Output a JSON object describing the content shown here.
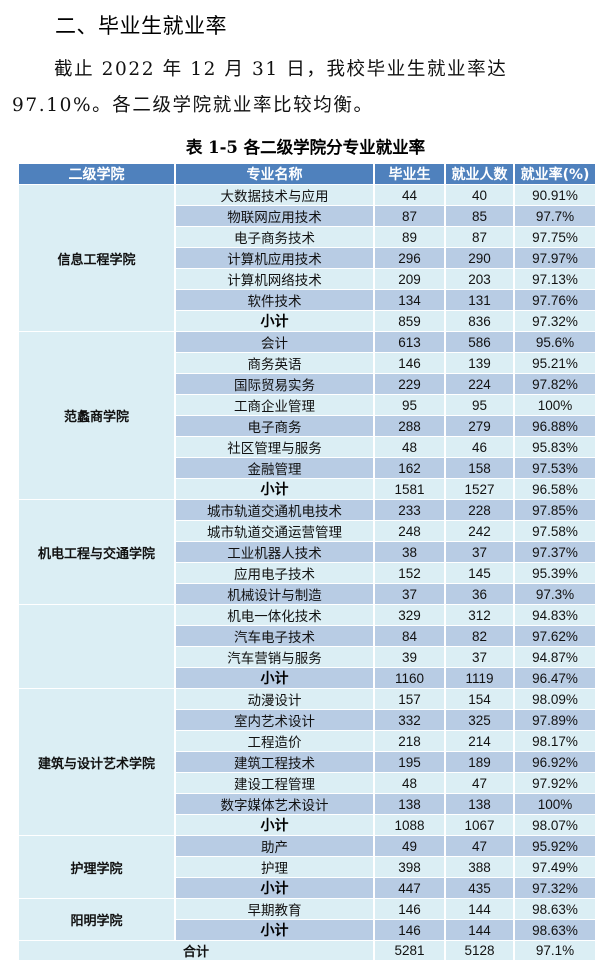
{
  "section": {
    "heading": "二、毕业生就业率",
    "paragraph": "截止 2022 年 12 月 31 日，我校毕业生就业率达 97.10%。各二级学院就业率比较均衡。"
  },
  "table": {
    "caption": "表 1-5 各二级学院分专业就业率",
    "headers": [
      "二级学院",
      "专业名称",
      "毕业生",
      "就业人数",
      "就业率(%)"
    ],
    "colors": {
      "header_bg": "#4f81bd",
      "header_text": "#ffffff",
      "row_light": "#dbeef4",
      "row_dark": "#b8cce4"
    },
    "groups": [
      {
        "college": "信息工程学院",
        "rows": [
          {
            "major": "大数据技术与应用",
            "graduates": "44",
            "employed": "40",
            "rate": "90.91%"
          },
          {
            "major": "物联网应用技术",
            "graduates": "87",
            "employed": "85",
            "rate": "97.7%"
          },
          {
            "major": "电子商务技术",
            "graduates": "89",
            "employed": "87",
            "rate": "97.75%"
          },
          {
            "major": "计算机应用技术",
            "graduates": "296",
            "employed": "290",
            "rate": "97.97%"
          },
          {
            "major": "计算机网络技术",
            "graduates": "209",
            "employed": "203",
            "rate": "97.13%"
          },
          {
            "major": "软件技术",
            "graduates": "134",
            "employed": "131",
            "rate": "97.76%"
          },
          {
            "major": "小计",
            "graduates": "859",
            "employed": "836",
            "rate": "97.32%",
            "subtotal": true
          }
        ]
      },
      {
        "college": "范蠡商学院",
        "rows": [
          {
            "major": "会计",
            "graduates": "613",
            "employed": "586",
            "rate": "95.6%"
          },
          {
            "major": "商务英语",
            "graduates": "146",
            "employed": "139",
            "rate": "95.21%"
          },
          {
            "major": "国际贸易实务",
            "graduates": "229",
            "employed": "224",
            "rate": "97.82%"
          },
          {
            "major": "工商企业管理",
            "graduates": "95",
            "employed": "95",
            "rate": "100%"
          },
          {
            "major": "电子商务",
            "graduates": "288",
            "employed": "279",
            "rate": "96.88%"
          },
          {
            "major": "社区管理与服务",
            "graduates": "48",
            "employed": "46",
            "rate": "95.83%"
          },
          {
            "major": "金融管理",
            "graduates": "162",
            "employed": "158",
            "rate": "97.53%"
          },
          {
            "major": "小计",
            "graduates": "1581",
            "employed": "1527",
            "rate": "96.58%",
            "subtotal": true
          }
        ]
      },
      {
        "college": "机电工程与交通学院",
        "rows": [
          {
            "major": "城市轨道交通机电技术",
            "graduates": "233",
            "employed": "228",
            "rate": "97.85%"
          },
          {
            "major": "城市轨道交通运营管理",
            "graduates": "248",
            "employed": "242",
            "rate": "97.58%"
          },
          {
            "major": "工业机器人技术",
            "graduates": "38",
            "employed": "37",
            "rate": "97.37%"
          },
          {
            "major": "应用电子技术",
            "graduates": "152",
            "employed": "145",
            "rate": "95.39%"
          },
          {
            "major": "机械设计与制造",
            "graduates": "37",
            "employed": "36",
            "rate": "97.3%"
          }
        ]
      },
      {
        "college": "",
        "rows": [
          {
            "major": "机电一体化技术",
            "graduates": "329",
            "employed": "312",
            "rate": "94.83%"
          },
          {
            "major": "汽车电子技术",
            "graduates": "84",
            "employed": "82",
            "rate": "97.62%"
          },
          {
            "major": "汽车营销与服务",
            "graduates": "39",
            "employed": "37",
            "rate": "94.87%"
          },
          {
            "major": "小计",
            "graduates": "1160",
            "employed": "1119",
            "rate": "96.47%",
            "subtotal": true
          }
        ]
      },
      {
        "college": "建筑与设计艺术学院",
        "rows": [
          {
            "major": "动漫设计",
            "graduates": "157",
            "employed": "154",
            "rate": "98.09%"
          },
          {
            "major": "室内艺术设计",
            "graduates": "332",
            "employed": "325",
            "rate": "97.89%"
          },
          {
            "major": "工程造价",
            "graduates": "218",
            "employed": "214",
            "rate": "98.17%"
          },
          {
            "major": "建筑工程技术",
            "graduates": "195",
            "employed": "189",
            "rate": "96.92%"
          },
          {
            "major": "建设工程管理",
            "graduates": "48",
            "employed": "47",
            "rate": "97.92%"
          },
          {
            "major": "数字媒体艺术设计",
            "graduates": "138",
            "employed": "138",
            "rate": "100%"
          },
          {
            "major": "小计",
            "graduates": "1088",
            "employed": "1067",
            "rate": "98.07%",
            "subtotal": true
          }
        ]
      },
      {
        "college": "护理学院",
        "rows": [
          {
            "major": "助产",
            "graduates": "49",
            "employed": "47",
            "rate": "95.92%"
          },
          {
            "major": "护理",
            "graduates": "398",
            "employed": "388",
            "rate": "97.49%"
          },
          {
            "major": "小计",
            "graduates": "447",
            "employed": "435",
            "rate": "97.32%",
            "subtotal": true
          }
        ]
      },
      {
        "college": "阳明学院",
        "rows": [
          {
            "major": "早期教育",
            "graduates": "146",
            "employed": "144",
            "rate": "98.63%"
          },
          {
            "major": "小计",
            "graduates": "146",
            "employed": "144",
            "rate": "98.63%",
            "subtotal": true
          }
        ]
      }
    ],
    "total": {
      "label": "合计",
      "graduates": "5281",
      "employed": "5128",
      "rate": "97.1%"
    }
  }
}
